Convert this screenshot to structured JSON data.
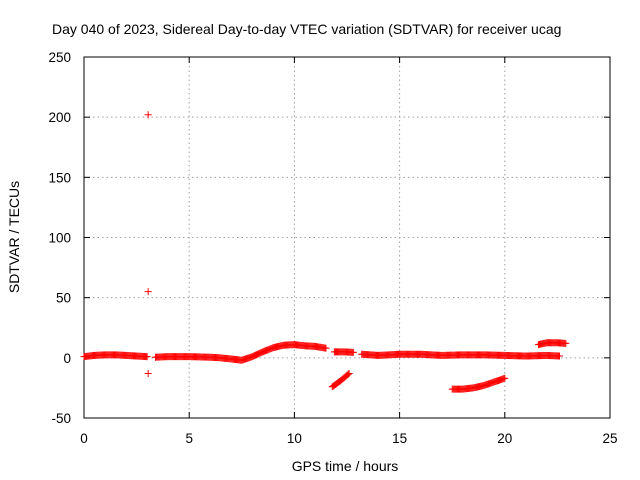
{
  "chart_data": {
    "type": "scatter",
    "title": "Day 040 of 2023, Sidereal Day-to-day VTEC variation (SDTVAR) for receiver ucag",
    "xlabel": "GPS time / hours",
    "ylabel": "SDTVAR / TECUs",
    "xlim": [
      0,
      25
    ],
    "ylim": [
      -50,
      250
    ],
    "xticks": [
      0,
      5,
      10,
      15,
      20,
      25
    ],
    "yticks": [
      -50,
      0,
      50,
      100,
      150,
      200,
      250
    ],
    "grid": true,
    "marker": "+",
    "color": "#ff0000",
    "segments": [
      {
        "x": [
          0.0,
          0.5,
          1.0,
          1.5,
          2.0,
          2.5,
          3.0
        ],
        "y": [
          1.0,
          2.0,
          2.5,
          2.5,
          2.0,
          1.5,
          1.0
        ]
      },
      {
        "x": [
          3.4,
          4.0,
          5.0,
          6.0,
          6.5,
          7.0,
          7.5,
          8.0,
          8.5,
          9.0,
          9.5,
          10.0,
          10.5,
          11.0,
          11.5
        ],
        "y": [
          0.5,
          1.0,
          1.0,
          0.5,
          0.0,
          -1.0,
          -2.0,
          1.0,
          5.0,
          8.5,
          10.5,
          11.0,
          10.0,
          9.5,
          8.0
        ]
      },
      {
        "x": [
          11.9,
          12.3,
          12.8
        ],
        "y": [
          5.0,
          5.0,
          4.5
        ]
      },
      {
        "x": [
          13.2,
          14.0,
          15.0,
          16.0,
          17.0,
          18.0,
          19.0,
          20.0,
          21.0,
          22.0,
          22.6
        ],
        "y": [
          3.0,
          2.0,
          3.0,
          3.0,
          2.0,
          2.5,
          2.5,
          2.0,
          1.5,
          2.0,
          1.5
        ]
      },
      {
        "x": [
          11.8,
          12.2,
          12.6
        ],
        "y": [
          -24.0,
          -19.0,
          -13.0
        ]
      },
      {
        "x": [
          17.5,
          18.0,
          18.5,
          19.0,
          19.5,
          20.0
        ],
        "y": [
          -26.0,
          -26.0,
          -25.0,
          -23.0,
          -20.0,
          -17.0
        ]
      },
      {
        "x": [
          21.6,
          22.0,
          22.5,
          22.9
        ],
        "y": [
          11.0,
          12.5,
          12.5,
          12.0
        ]
      }
    ],
    "outliers": {
      "x": [
        3.05,
        3.05,
        3.05
      ],
      "y": [
        202,
        55,
        -13
      ]
    }
  }
}
